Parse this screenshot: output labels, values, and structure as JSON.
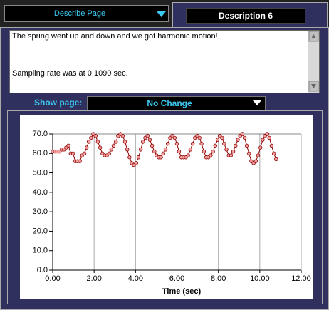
{
  "top_bar": {
    "page_selector": "Describe Page",
    "tab_title": "Description 6"
  },
  "text_area": {
    "lines": [
      "The spring went up and down and we got harmonic motion!",
      "Sampling rate was at  0.1090 sec."
    ]
  },
  "show_page": {
    "label": "Show page:",
    "value": "No Change"
  },
  "chart_data": {
    "type": "line",
    "x_label": "Time (sec)",
    "color": "#8b0000",
    "marker_fill": "#f4a0a0",
    "x": [
      0,
      0.11,
      0.22,
      0.33,
      0.44,
      0.55,
      0.65,
      0.76,
      0.87,
      0.98,
      1.09,
      1.2,
      1.31,
      1.42,
      1.53,
      1.64,
      1.74,
      1.85,
      1.96,
      2.07,
      2.18,
      2.29,
      2.4,
      2.51,
      2.62,
      2.73,
      2.83,
      2.94,
      3.05,
      3.16,
      3.27,
      3.38,
      3.49,
      3.6,
      3.71,
      3.82,
      3.92,
      4.03,
      4.14,
      4.25,
      4.36,
      4.47,
      4.58,
      4.69,
      4.8,
      4.91,
      5.01,
      5.12,
      5.23,
      5.34,
      5.45,
      5.56,
      5.67,
      5.78,
      5.89,
      6.0,
      6.1,
      6.21,
      6.32,
      6.43,
      6.54,
      6.65,
      6.76,
      6.87,
      6.98,
      7.09,
      7.19,
      7.3,
      7.41,
      7.52,
      7.63,
      7.74,
      7.85,
      7.96,
      8.07,
      8.18,
      8.28,
      8.39,
      8.5,
      8.61,
      8.72,
      8.83,
      8.94,
      9.05,
      9.16,
      9.27,
      9.37,
      9.48,
      9.59,
      9.7,
      9.81,
      9.92,
      10.03,
      10.14,
      10.25,
      10.36,
      10.46,
      10.57,
      10.68,
      10.79
    ],
    "values": [
      61,
      61,
      61,
      61,
      62,
      62,
      63,
      64,
      60,
      60,
      56,
      56,
      56,
      59,
      60,
      63,
      66,
      68,
      70,
      69,
      66,
      63,
      60,
      59,
      59,
      60,
      62,
      64,
      66,
      69,
      70,
      69,
      66,
      62,
      58,
      55,
      54,
      55,
      58,
      62,
      66,
      68,
      69,
      67,
      64,
      61,
      59,
      58,
      58,
      60,
      62,
      65,
      68,
      69,
      68,
      65,
      61,
      58,
      58,
      58,
      59,
      62,
      65,
      68,
      69,
      68,
      65,
      61,
      58,
      58,
      59,
      61,
      64,
      67,
      69,
      68,
      65,
      62,
      59,
      59,
      61,
      64,
      67,
      69,
      70,
      68,
      64,
      60,
      56,
      55,
      56,
      59,
      63,
      67,
      69,
      70,
      68,
      64,
      60,
      57
    ],
    "xlim": [
      0,
      12
    ],
    "ylim": [
      0,
      70
    ],
    "xticks": [
      {
        "value": 0,
        "label": "0.00"
      },
      {
        "value": 2,
        "label": "2.00"
      },
      {
        "value": 4,
        "label": "4.00"
      },
      {
        "value": 6,
        "label": "6.00"
      },
      {
        "value": 8,
        "label": "8.00"
      },
      {
        "value": 10,
        "label": "10.00"
      },
      {
        "value": 12,
        "label": "12.00"
      }
    ],
    "yticks": [
      {
        "value": 0,
        "label": "0.0"
      },
      {
        "value": 10,
        "label": "10.0"
      },
      {
        "value": 20,
        "label": "20.0"
      },
      {
        "value": 30,
        "label": "30.0"
      },
      {
        "value": 40,
        "label": "40.0"
      },
      {
        "value": 50,
        "label": "50.0"
      },
      {
        "value": 60,
        "label": "60.0"
      },
      {
        "value": 70,
        "label": "70.0"
      }
    ],
    "grid": "x"
  }
}
